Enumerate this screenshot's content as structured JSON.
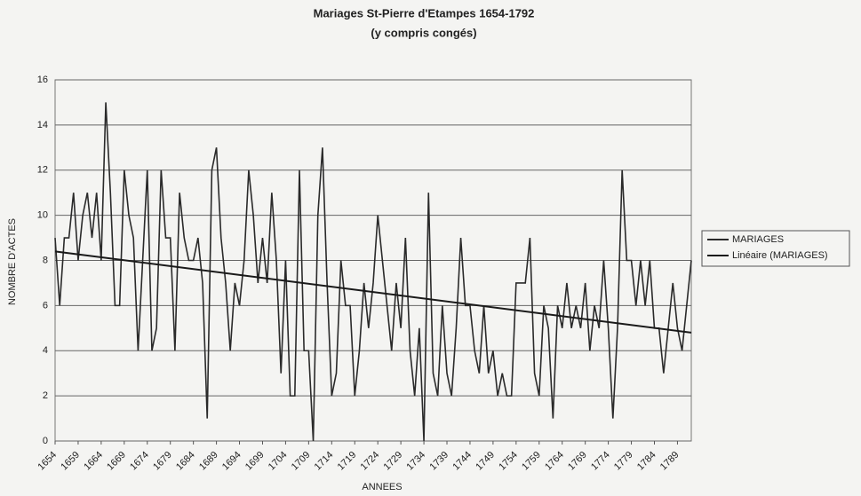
{
  "chart_data": {
    "type": "line",
    "title": "Mariages St-Pierre d'Etampes 1654-1792",
    "subtitle": "(y compris congés)",
    "x_label": "ANNEES",
    "y_label": "NOMBRE D'ACTES",
    "x": [
      1654,
      1655,
      1656,
      1657,
      1658,
      1659,
      1660,
      1661,
      1662,
      1663,
      1664,
      1665,
      1666,
      1667,
      1668,
      1669,
      1670,
      1671,
      1672,
      1673,
      1674,
      1675,
      1676,
      1677,
      1678,
      1679,
      1680,
      1681,
      1682,
      1683,
      1684,
      1685,
      1686,
      1687,
      1688,
      1689,
      1690,
      1691,
      1692,
      1693,
      1694,
      1695,
      1696,
      1697,
      1698,
      1699,
      1700,
      1701,
      1702,
      1703,
      1704,
      1705,
      1706,
      1707,
      1708,
      1709,
      1710,
      1711,
      1712,
      1713,
      1714,
      1715,
      1716,
      1717,
      1718,
      1719,
      1720,
      1721,
      1722,
      1723,
      1724,
      1725,
      1726,
      1727,
      1728,
      1729,
      1730,
      1731,
      1732,
      1733,
      1734,
      1735,
      1736,
      1737,
      1738,
      1739,
      1740,
      1741,
      1742,
      1743,
      1744,
      1745,
      1746,
      1747,
      1748,
      1749,
      1750,
      1751,
      1752,
      1753,
      1754,
      1755,
      1756,
      1757,
      1758,
      1759,
      1760,
      1761,
      1762,
      1763,
      1764,
      1765,
      1766,
      1767,
      1768,
      1769,
      1770,
      1771,
      1772,
      1773,
      1774,
      1775,
      1776,
      1777,
      1778,
      1779,
      1780,
      1781,
      1782,
      1783,
      1784,
      1785,
      1786,
      1787,
      1788,
      1789,
      1790,
      1791,
      1792
    ],
    "series": [
      {
        "name": "MARIAGES",
        "color": "#2a2a2a",
        "values": [
          9,
          6,
          9,
          9,
          11,
          8,
          10,
          11,
          9,
          11,
          8,
          15,
          11,
          6,
          6,
          12,
          10,
          9,
          4,
          8,
          12,
          4,
          5,
          12,
          9,
          9,
          4,
          11,
          9,
          8,
          8,
          9,
          7,
          1,
          12,
          13,
          9,
          7,
          4,
          7,
          6,
          8,
          12,
          10,
          7,
          9,
          7,
          11,
          8,
          3,
          8,
          2,
          2,
          12,
          4,
          4,
          0,
          10,
          13,
          7,
          2,
          3,
          8,
          6,
          6,
          2,
          4,
          7,
          5,
          7,
          10,
          8,
          6,
          4,
          7,
          5,
          9,
          4,
          2,
          5,
          0,
          11,
          3,
          2,
          6,
          3,
          2,
          5,
          9,
          6,
          6,
          4,
          3,
          6,
          3,
          4,
          2,
          3,
          2,
          2,
          7,
          7,
          7,
          9,
          3,
          2,
          6,
          5,
          1,
          6,
          5,
          7,
          5,
          6,
          5,
          7,
          4,
          6,
          5,
          8,
          5,
          1,
          5,
          12,
          8,
          8,
          6,
          8,
          6,
          8,
          5,
          5,
          3,
          5,
          7,
          5,
          4,
          6,
          8
        ]
      }
    ],
    "trend": {
      "name": "Linéaire (MARIAGES)",
      "color": "#1a1a1a",
      "x": [
        1654,
        1792
      ],
      "values": [
        8.4,
        4.8
      ]
    },
    "xlim": [
      1654,
      1792
    ],
    "xticks": [
      1654,
      1659,
      1664,
      1669,
      1674,
      1679,
      1684,
      1689,
      1694,
      1699,
      1704,
      1709,
      1714,
      1719,
      1724,
      1729,
      1734,
      1739,
      1744,
      1749,
      1754,
      1759,
      1764,
      1769,
      1774,
      1779,
      1784,
      1789
    ],
    "ylim": [
      0,
      16
    ],
    "yticks": [
      0,
      2,
      4,
      6,
      8,
      10,
      12,
      14,
      16
    ],
    "grid": true,
    "legend": "right"
  }
}
